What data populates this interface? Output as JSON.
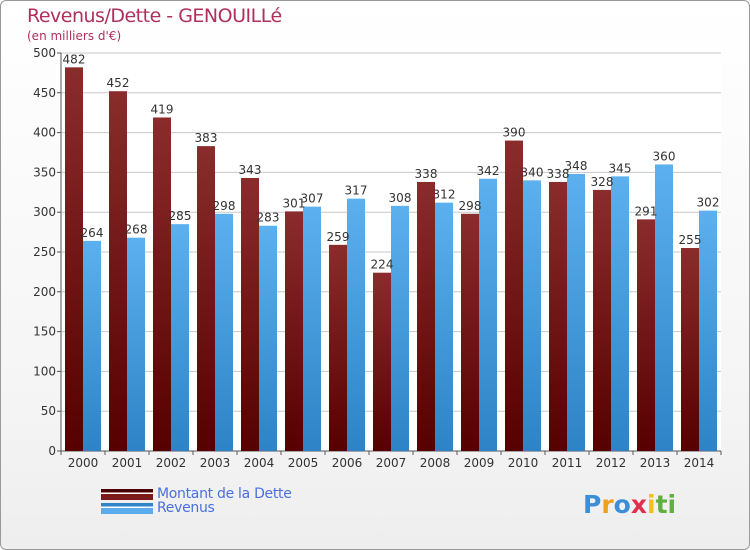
{
  "title": "Revenus/Dette - GENOUILLé",
  "subtitle": "(en milliers d'€)",
  "legend": {
    "debt_label": "Montant de la Dette",
    "revenue_label": "Revenus"
  },
  "logo": {
    "letters": [
      "P",
      "r",
      "o",
      "x",
      "i",
      "t",
      "i"
    ],
    "colors": [
      "#3a8fd8",
      "#f0a020",
      "#3a8fd8",
      "#e03050",
      "#f0c020",
      "#60b040",
      "#60b040"
    ]
  },
  "colors": {
    "debt": "#6e1414",
    "revenue": "#4aa3e6",
    "axis_text": "#333333",
    "grid": "#c8c8c8",
    "title": "#b0305a"
  },
  "chart_data": {
    "type": "bar",
    "title": "Revenus/Dette - GENOUILLé",
    "ylabel": "(en milliers d'€)",
    "xlabel": "",
    "categories": [
      "2000",
      "2001",
      "2002",
      "2003",
      "2004",
      "2005",
      "2006",
      "2007",
      "2008",
      "2009",
      "2010",
      "2011",
      "2012",
      "2013",
      "2014"
    ],
    "series": [
      {
        "name": "Montant de la Dette",
        "values": [
          482,
          452,
          419,
          383,
          343,
          301,
          259,
          224,
          338,
          298,
          390,
          338,
          328,
          291,
          255
        ]
      },
      {
        "name": "Revenus",
        "values": [
          264,
          268,
          285,
          298,
          283,
          307,
          317,
          308,
          312,
          342,
          340,
          348,
          345,
          360,
          302
        ]
      }
    ],
    "ylim": [
      0,
      500
    ],
    "yticks": [
      0,
      50,
      100,
      150,
      200,
      250,
      300,
      350,
      400,
      450,
      500
    ],
    "grid": true,
    "legend_position": "bottom-left"
  }
}
